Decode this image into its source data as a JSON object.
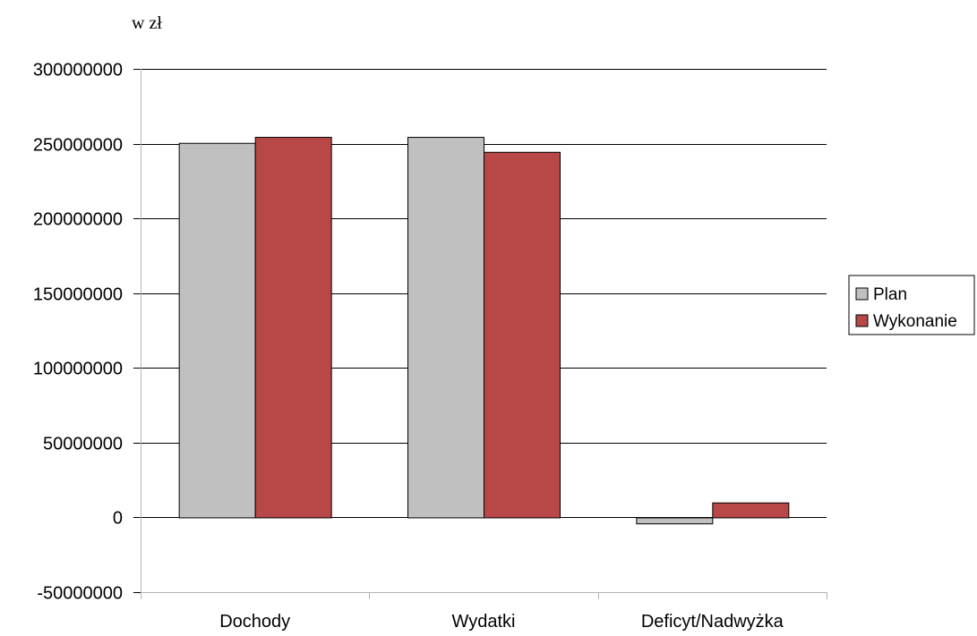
{
  "chart_data": {
    "type": "bar",
    "unit_label": "w zł",
    "categories": [
      "Dochody",
      "Wydatki",
      "Deficyt/Nadwyżka"
    ],
    "series": [
      {
        "name": "Plan",
        "color": "#c0c0c0",
        "values": [
          250500000,
          254500000,
          -4000000
        ]
      },
      {
        "name": "Wykonanie",
        "color": "#b84747",
        "values": [
          254500000,
          244500000,
          10000000
        ]
      }
    ],
    "ylim": [
      -50000000,
      300000000
    ],
    "yticks": [
      300000000,
      250000000,
      200000000,
      150000000,
      100000000,
      50000000,
      0,
      -50000000
    ],
    "grid": true,
    "legend_position": "right"
  }
}
